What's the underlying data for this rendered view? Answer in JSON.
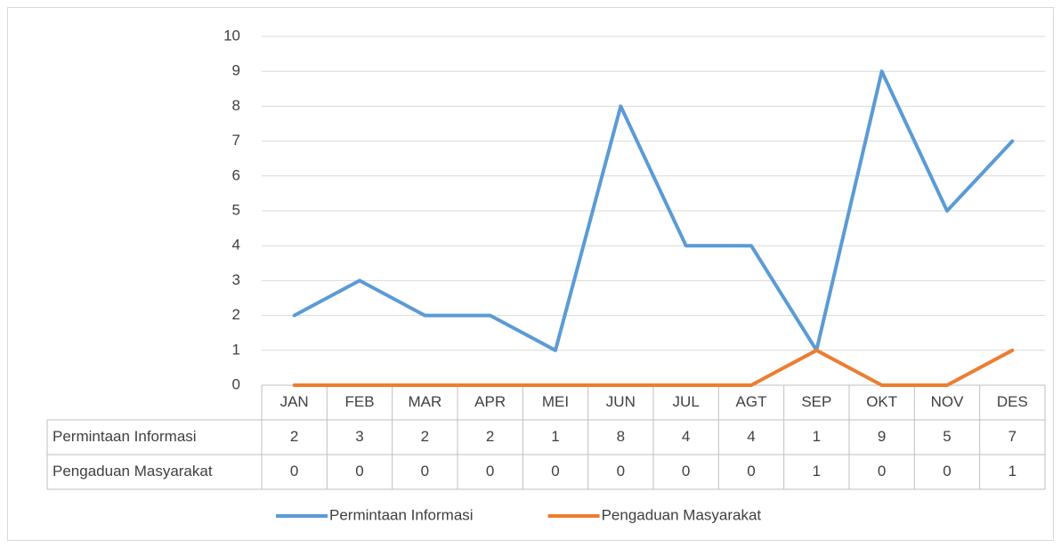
{
  "chart_data": {
    "type": "line",
    "categories": [
      "JAN",
      "FEB",
      "MAR",
      "APR",
      "MEI",
      "JUN",
      "JUL",
      "AGT",
      "SEP",
      "OKT",
      "NOV",
      "DES"
    ],
    "series": [
      {
        "name": "Permintaan Informasi",
        "color": "#5b9bd5",
        "values": [
          2,
          3,
          2,
          2,
          1,
          8,
          4,
          4,
          1,
          9,
          5,
          7
        ]
      },
      {
        "name": "Pengaduan Masyarakat",
        "color": "#ed7d31",
        "values": [
          0,
          0,
          0,
          0,
          0,
          0,
          0,
          0,
          1,
          0,
          0,
          1
        ]
      }
    ],
    "ylim": [
      0,
      10
    ],
    "yticks": [
      0,
      1,
      2,
      3,
      4,
      5,
      6,
      7,
      8,
      9,
      10
    ],
    "grid": true,
    "legend": "bottom",
    "data_table": true
  }
}
